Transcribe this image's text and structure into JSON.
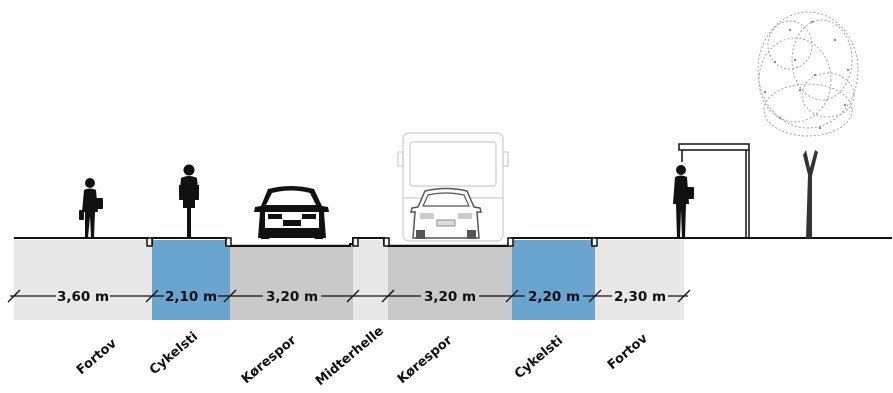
{
  "colors": {
    "sidewalk": "#e8e8e8",
    "bike": "#6aa5cf",
    "road": "#c9c9c9",
    "median": "#e8e8e8",
    "ground_line": "#111111",
    "silhouette": "#111111",
    "ghost": "#dadada"
  },
  "segments": [
    {
      "id": "seg-fortov-left",
      "width_label": "3,60 m",
      "label": "Fortov",
      "kind": "sidewalk"
    },
    {
      "id": "seg-cykelsti-left",
      "width_label": "2,10 m",
      "label": "Cykelsti",
      "kind": "bike"
    },
    {
      "id": "seg-korespor-left",
      "width_label": "3,20 m",
      "label": "Kørespor",
      "kind": "road"
    },
    {
      "id": "seg-midterhelle",
      "width_label": "",
      "label": "Midterhelle",
      "kind": "median"
    },
    {
      "id": "seg-korespor-right",
      "width_label": "3,20 m",
      "label": "Kørespor",
      "kind": "road"
    },
    {
      "id": "seg-cykelsti-right",
      "width_label": "2,20 m",
      "label": "Cykelsti",
      "kind": "bike"
    },
    {
      "id": "seg-fortov-right",
      "width_label": "2,30 m",
      "label": "Fortov",
      "kind": "sidewalk"
    }
  ],
  "icons": [
    "pedestrian-icon",
    "cyclist-icon",
    "car-front-icon",
    "car-rear-icon",
    "bus-icon",
    "bus-shelter-icon",
    "waiting-person-icon",
    "tree-icon"
  ]
}
